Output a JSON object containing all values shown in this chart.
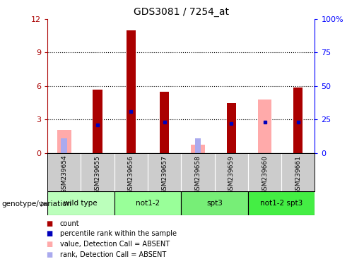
{
  "title": "GDS3081 / 7254_at",
  "samples": [
    "GSM239654",
    "GSM239655",
    "GSM239656",
    "GSM239657",
    "GSM239658",
    "GSM239659",
    "GSM239660",
    "GSM239661"
  ],
  "red_bars": [
    0.0,
    5.7,
    11.0,
    5.5,
    0.0,
    4.5,
    0.0,
    5.85
  ],
  "blue_markers": [
    null,
    2.5,
    3.7,
    2.8,
    null,
    2.65,
    2.8,
    2.8
  ],
  "pink_bars": [
    2.1,
    0.0,
    0.0,
    0.0,
    0.75,
    0.0,
    4.8,
    0.0
  ],
  "light_blue_bars": [
    1.3,
    0.0,
    0.0,
    0.0,
    1.35,
    0.0,
    0.0,
    0.0
  ],
  "groups": [
    {
      "label": "wild type",
      "start": 0,
      "end": 2
    },
    {
      "label": "not1-2",
      "start": 2,
      "end": 4
    },
    {
      "label": "spt3",
      "start": 4,
      "end": 6
    },
    {
      "label": "not1-2 spt3",
      "start": 6,
      "end": 8
    }
  ],
  "group_colors": [
    "#bbffbb",
    "#99ff99",
    "#77ee77",
    "#44ee44"
  ],
  "ylim": [
    0,
    12
  ],
  "y2lim": [
    0,
    100
  ],
  "yticks": [
    0,
    3,
    6,
    9,
    12
  ],
  "y2ticks": [
    0,
    25,
    50,
    75,
    100
  ],
  "red_color": "#aa0000",
  "pink_color": "#ffaaaa",
  "blue_color": "#0000bb",
  "light_blue_color": "#aaaaee",
  "label_bg": "#cccccc",
  "genotype_label": "genotype/variation",
  "legend_items": [
    {
      "color": "#aa0000",
      "label": "count"
    },
    {
      "color": "#0000bb",
      "label": "percentile rank within the sample"
    },
    {
      "color": "#ffaaaa",
      "label": "value, Detection Call = ABSENT"
    },
    {
      "color": "#aaaaee",
      "label": "rank, Detection Call = ABSENT"
    }
  ]
}
